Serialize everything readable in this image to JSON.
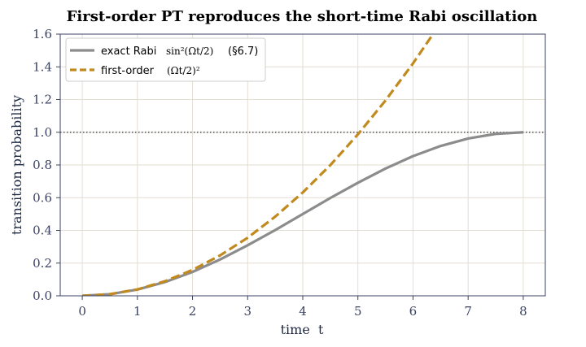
{
  "chart_data": {
    "type": "line",
    "title": "First-order PT reproduces the short-time Rabi oscillation",
    "xlabel": "time  t",
    "ylabel": "transition probability",
    "xlim": [
      -0.4,
      8.4
    ],
    "ylim": [
      0.0,
      1.6
    ],
    "xticks": [
      0,
      1,
      2,
      3,
      4,
      5,
      6,
      7,
      8
    ],
    "yticks": [
      "0.0",
      "0.2",
      "0.4",
      "0.6",
      "0.8",
      "1.0",
      "1.2",
      "1.4",
      "1.6"
    ],
    "grid": true,
    "legend_position": "top-left",
    "reference_line": {
      "y": 1.0,
      "style": "dotted",
      "color": "#333333"
    },
    "series": [
      {
        "name": "exact Rabi",
        "formula_label": "sin²(Ωt/2)",
        "note": "(§6.7)",
        "color": "#8c8c8c",
        "style": "solid",
        "x": [
          0,
          0.5,
          1,
          1.5,
          2,
          2.5,
          3,
          3.5,
          4,
          4.5,
          5,
          5.5,
          6,
          6.5,
          7,
          7.5,
          8
        ],
        "y": [
          0.0,
          0.0096,
          0.038,
          0.084,
          0.146,
          0.222,
          0.309,
          0.402,
          0.5,
          0.598,
          0.691,
          0.778,
          0.854,
          0.916,
          0.962,
          0.99,
          1.0
        ]
      },
      {
        "name": "first-order",
        "formula_label": "(Ωt/2)²",
        "color": "#c18a1e",
        "style": "dashed",
        "x": [
          0,
          0.5,
          1,
          1.5,
          2,
          2.5,
          3,
          3.5,
          4,
          4.5,
          5,
          5.5,
          6,
          6.5
        ],
        "y": [
          0.0,
          0.0099,
          0.039,
          0.089,
          0.158,
          0.247,
          0.355,
          0.484,
          0.632,
          0.799,
          0.987,
          1.194,
          1.421,
          1.668
        ]
      }
    ]
  }
}
